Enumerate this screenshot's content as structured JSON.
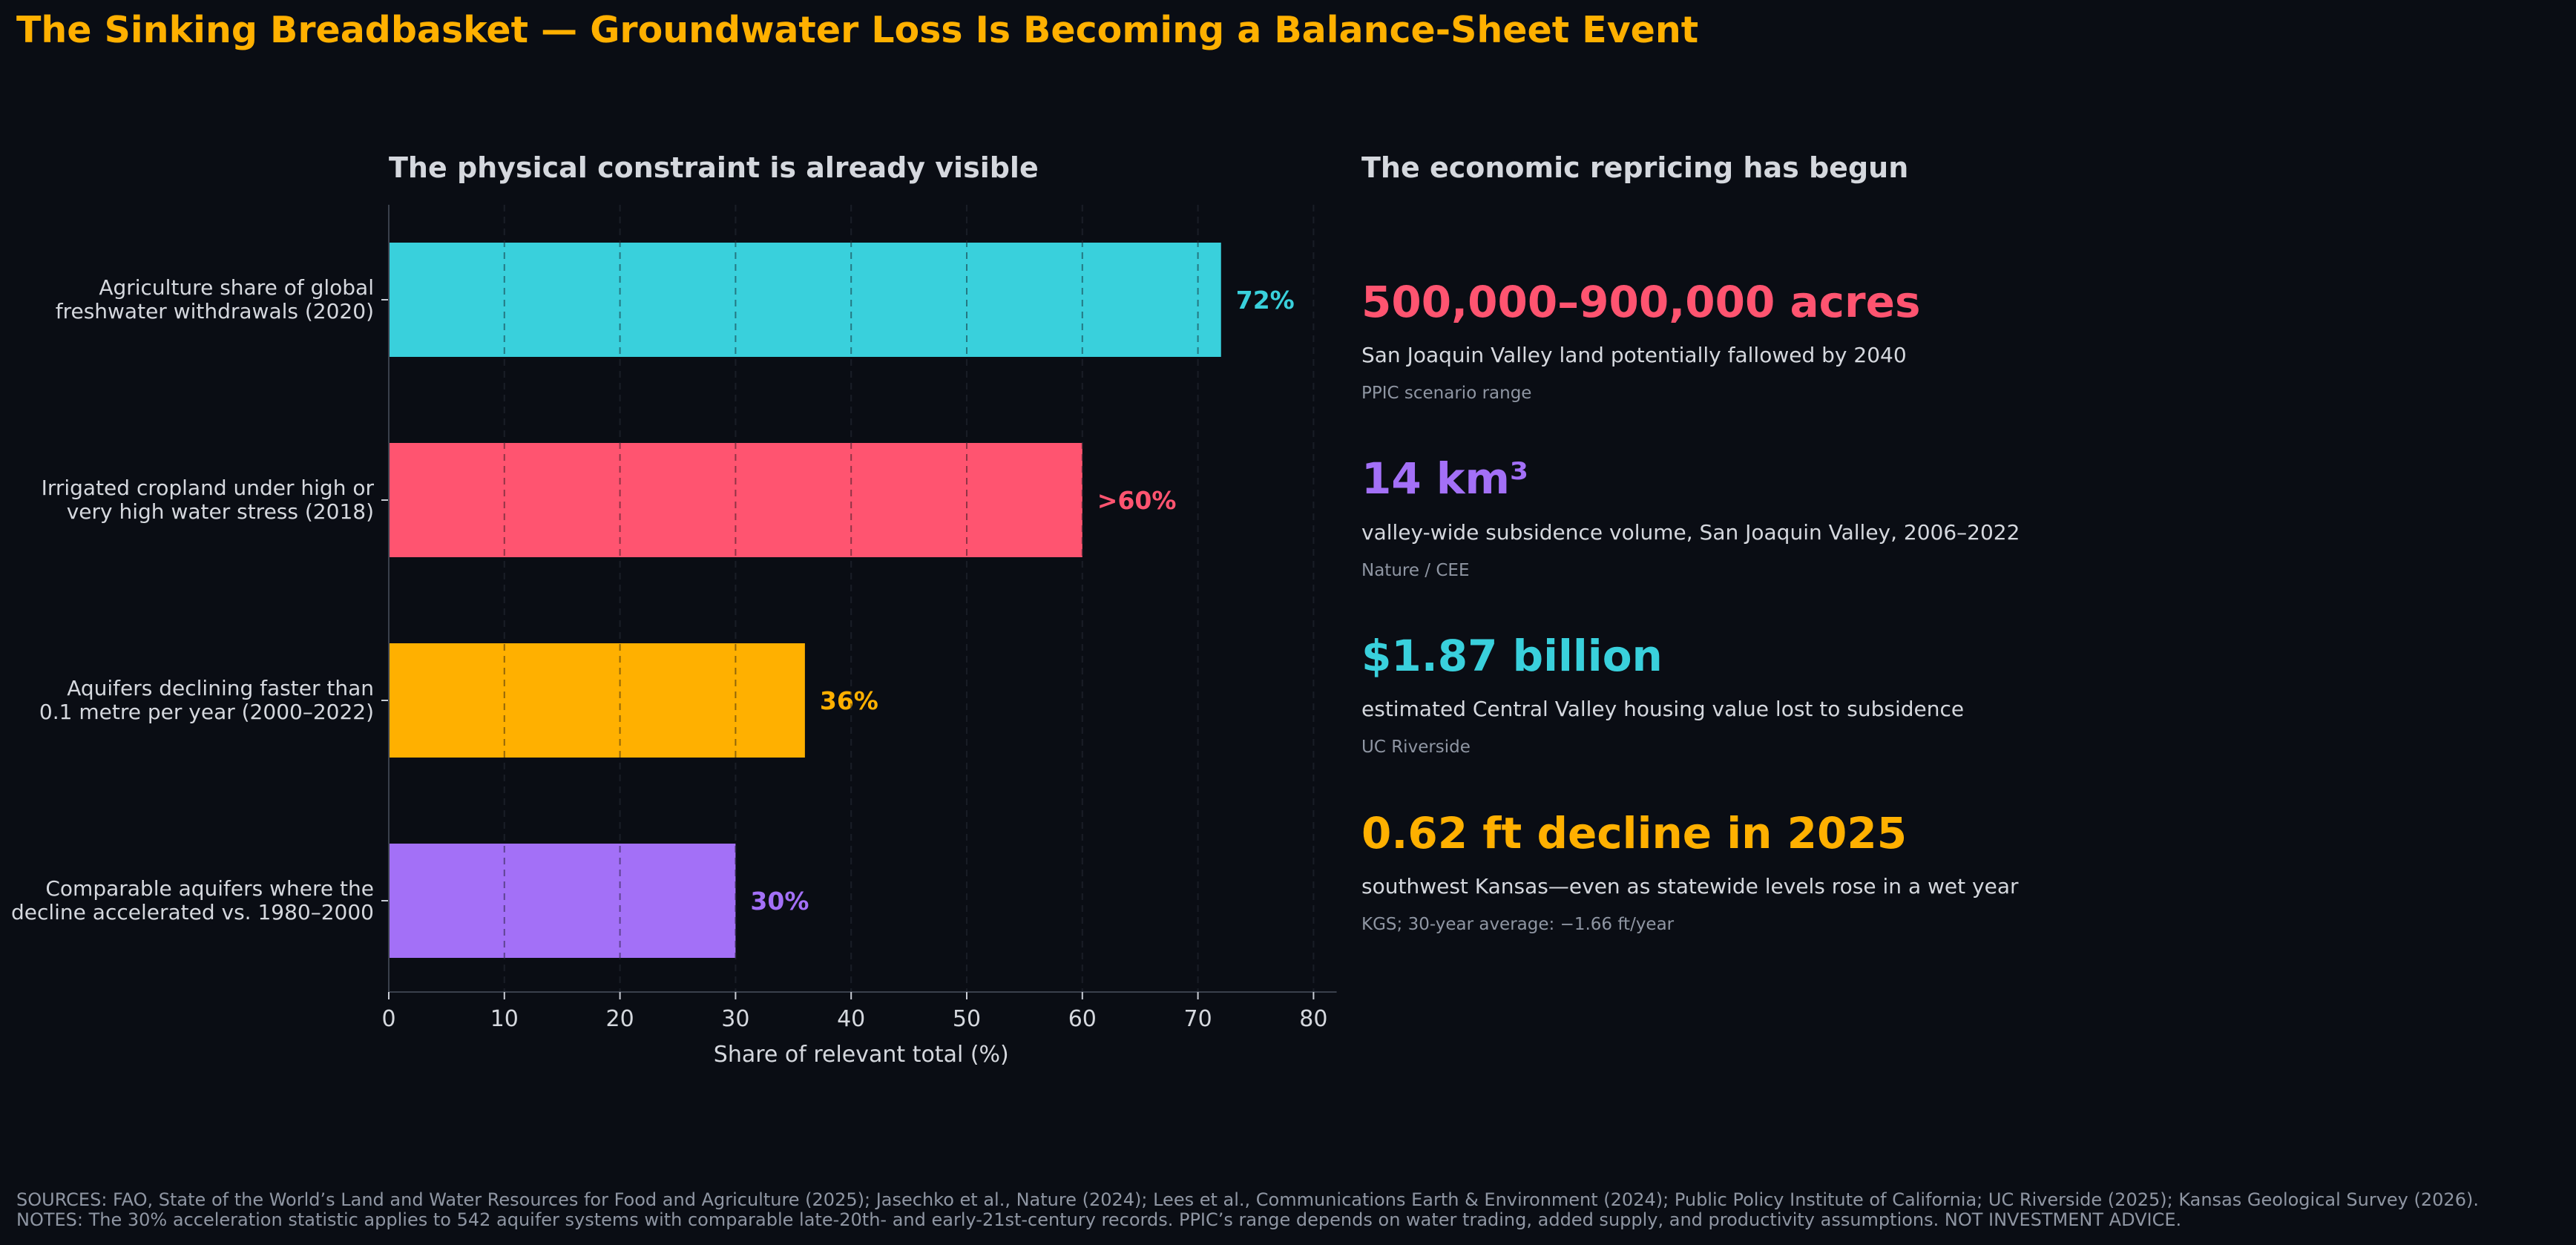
{
  "title": "The Sinking Breadbasket — Groundwater Loss Is Becoming a Balance-Sheet Event",
  "left_panel": {
    "title": "The physical constraint is already visible"
  },
  "right_panel": {
    "title": "The economic repricing has begun",
    "stats": [
      {
        "value": "500,000–900,000 acres",
        "description": "San Joaquin Valley land potentially fallowed by 2040",
        "source": "PPIC scenario range",
        "color": "#ff5470"
      },
      {
        "value": "14 km³",
        "description": "valley-wide subsidence volume, San Joaquin Valley, 2006–2022",
        "source": "Nature / CEE",
        "color": "#a370f7"
      },
      {
        "value": "$1.87 billion",
        "description": "estimated Central Valley housing value lost to subsidence",
        "source": "UC Riverside",
        "color": "#39d0dc"
      },
      {
        "value": "0.62 ft decline in 2025",
        "description": "southwest Kansas—even as statewide levels rose in a wet year",
        "source": "KGS; 30-year average: −1.66 ft/year",
        "color": "#ffb000"
      }
    ]
  },
  "chart_data": {
    "type": "bar",
    "orientation": "horizontal",
    "categories": [
      [
        "Agriculture share of global",
        "freshwater withdrawals (2020)"
      ],
      [
        "Irrigated cropland under high or",
        "very high water stress (2018)"
      ],
      [
        "Aquifers declining faster than",
        "0.1 metre per year (2000–2022)"
      ],
      [
        "Comparable aquifers where the",
        "decline accelerated vs. 1980–2000"
      ]
    ],
    "values": [
      72,
      60,
      36,
      30
    ],
    "value_labels": [
      "72%",
      ">60%",
      "36%",
      "30%"
    ],
    "colors": [
      "#39d0dc",
      "#ff5470",
      "#ffb000",
      "#a370f7"
    ],
    "xlabel": "Share of relevant total (%)",
    "xlim": [
      0,
      82
    ],
    "xticks": [
      0,
      10,
      20,
      30,
      40,
      50,
      60,
      70,
      80
    ],
    "grid": true
  },
  "footer": {
    "sources": "SOURCES: FAO, State of the World’s Land and Water Resources for Food and Agriculture (2025); Jasechko et al., Nature (2024); Lees et al., Communications Earth & Environment (2024); Public Policy Institute of California; UC Riverside (2025); Kansas Geological Survey (2026).",
    "notes": "NOTES: The 30% acceleration statistic applies to 542 aquifer systems with comparable late-20th- and early-21st-century records. PPIC’s range depends on water trading, added supply, and productivity assumptions. NOT INVESTMENT ADVICE."
  }
}
